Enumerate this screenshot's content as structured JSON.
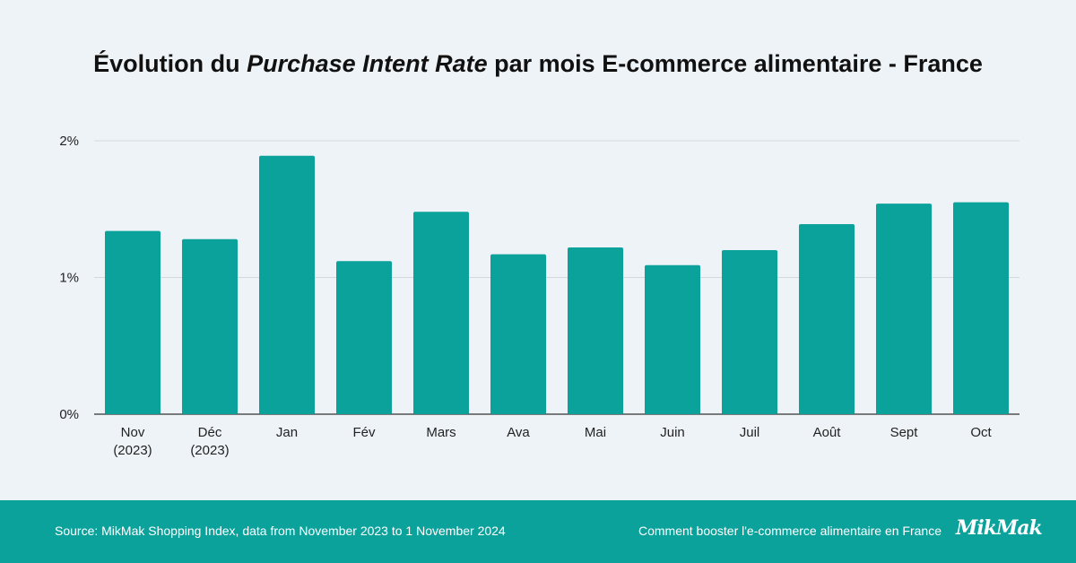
{
  "header": {
    "title_before": "Évolution du ",
    "title_em": "Purchase Intent Rate",
    "title_after": " par mois E-commerce alimentaire - France"
  },
  "chart_data": {
    "type": "bar",
    "categories": [
      [
        "Nov",
        "(2023)"
      ],
      [
        "Déc",
        "(2023)"
      ],
      [
        "Jan"
      ],
      [
        "Fév"
      ],
      [
        "Mars"
      ],
      [
        "Ava"
      ],
      [
        "Mai"
      ],
      [
        "Juin"
      ],
      [
        "Juil"
      ],
      [
        "Août"
      ],
      [
        "Sept"
      ],
      [
        "Oct"
      ]
    ],
    "values": [
      1.34,
      1.28,
      1.89,
      1.12,
      1.48,
      1.17,
      1.22,
      1.09,
      1.2,
      1.39,
      1.54,
      1.55
    ],
    "yticks": [
      "0%",
      "1%",
      "2%"
    ],
    "ylim": [
      0,
      2
    ],
    "xlabel": "",
    "ylabel": "",
    "bar_color": "#0ba29c",
    "grid": true
  },
  "footer": {
    "source": "Source: MikMak Shopping Index, data from November 2023 to 1 November 2024",
    "link": "Comment booster l'e-commerce alimentaire en France",
    "logo": "MikMak"
  }
}
